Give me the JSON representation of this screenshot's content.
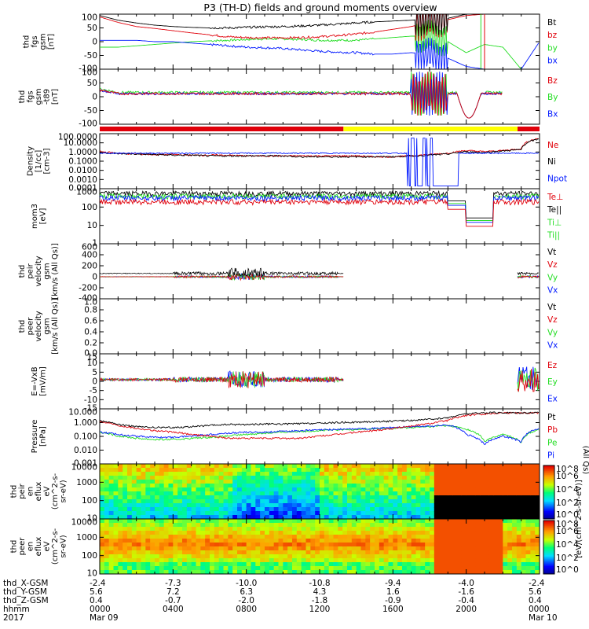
{
  "title": "P3 (TH-D) fields and ground moments overview",
  "colors": {
    "black": "#000000",
    "red": "#e0000a",
    "green": "#22dd22",
    "blue": "#0018ff",
    "yellow": "#ffff00"
  },
  "panels": [
    {
      "id": "fgs",
      "ylabel": [
        "thd",
        "fgs",
        "gsm",
        "[nT]"
      ],
      "yticks": [
        "100",
        "50",
        "0",
        "-50",
        "-100"
      ],
      "legend": [
        {
          "text": "Bt",
          "color": "black"
        },
        {
          "text": "bz",
          "color": "red"
        },
        {
          "text": "by",
          "color": "green"
        },
        {
          "text": "bx",
          "color": "blue"
        }
      ]
    },
    {
      "id": "fgs_t89",
      "ylabel": [
        "thd",
        "fgs",
        "gsm",
        "-t89",
        "[nT]"
      ],
      "yticks": [
        "100",
        "50",
        "0",
        "-50",
        "-100"
      ],
      "legend": [
        {
          "text": "Bz",
          "color": "red"
        },
        {
          "text": "By",
          "color": "green"
        },
        {
          "text": "Bx",
          "color": "blue"
        }
      ]
    },
    {
      "id": "density",
      "ylabel": [
        "Density",
        "[1/cc]",
        "[cm-3]"
      ],
      "yticks": [
        "100.0000",
        "10.0000",
        "1.0000",
        "0.1000",
        "0.0100",
        "0.0010",
        "0.0001"
      ],
      "legend": [
        {
          "text": "Ne",
          "color": "red"
        },
        {
          "text": "Ni",
          "color": "black"
        },
        {
          "text": "Npot",
          "color": "blue"
        }
      ]
    },
    {
      "id": "temp",
      "ylabel": [
        "mom3",
        "[eV]"
      ],
      "yticks": [
        "1000",
        "100",
        "10",
        "1"
      ],
      "legend": [
        {
          "text": "Te⊥",
          "color": "red"
        },
        {
          "text": "Te||",
          "color": "black"
        },
        {
          "text": "Ti⊥",
          "color": "green"
        },
        {
          "text": "Ti||",
          "color": "green"
        }
      ]
    },
    {
      "id": "vi",
      "ylabel": [
        "thd",
        "peir",
        "velocity",
        "gsm",
        "[km/s (All Qs)]"
      ],
      "yticks": [
        "600",
        "400",
        "200",
        "0",
        "-200",
        "-400"
      ],
      "legend": [
        {
          "text": "Vt",
          "color": "black"
        },
        {
          "text": "Vz",
          "color": "red"
        },
        {
          "text": "Vy",
          "color": "green"
        },
        {
          "text": "Vx",
          "color": "blue"
        }
      ]
    },
    {
      "id": "ve",
      "ylabel": [
        "thd",
        "peer",
        "velocity",
        "gsm",
        "[km/s (All Qs)]"
      ],
      "yticks": [
        "1.0",
        "0.8",
        "0.6",
        "0.4",
        "0.2",
        "0.0"
      ],
      "legend": [
        {
          "text": "Vt",
          "color": "black"
        },
        {
          "text": "Vz",
          "color": "red"
        },
        {
          "text": "Vy",
          "color": "green"
        },
        {
          "text": "Vx",
          "color": "blue"
        }
      ]
    },
    {
      "id": "efield",
      "ylabel": [
        "E=-VxB",
        "[mV/m]"
      ],
      "yticks": [
        "15",
        "10",
        "5",
        "0",
        "-5",
        "-10",
        "-15"
      ],
      "legend": [
        {
          "text": "Ez",
          "color": "red"
        },
        {
          "text": "Ey",
          "color": "green"
        },
        {
          "text": "Ex",
          "color": "blue"
        }
      ]
    },
    {
      "id": "pressure",
      "ylabel": [
        "Pressure",
        "[nPa]"
      ],
      "yticks": [
        "10.000",
        "1.000",
        "0.100",
        "0.010",
        "0.001"
      ],
      "legend": [
        {
          "text": "Pt",
          "color": "black"
        },
        {
          "text": "Pb",
          "color": "red"
        },
        {
          "text": "Pe",
          "color": "green"
        },
        {
          "text": "Pi",
          "color": "blue"
        }
      ],
      "side_note": "(All Qs)"
    },
    {
      "id": "peir_spec",
      "ylabel": [
        "thd",
        "peir",
        "en",
        "eflux",
        "eV",
        "(cm^2-s-",
        "sr-eV)"
      ],
      "yticks": [
        "10000",
        "1000",
        "100",
        "10"
      ]
    },
    {
      "id": "peer_spec",
      "ylabel": [
        "thd",
        "peer",
        "en",
        "eflux",
        "eV",
        "(cm^2-s-",
        "sr-eV)"
      ],
      "yticks": [
        "10000",
        "1000",
        "100",
        "10"
      ]
    }
  ],
  "colorbar": {
    "label": "[eV/(cm^2-s-sr-eV)]",
    "upper_ticks": [
      "10^8",
      "10^6",
      "10^4",
      "10^2",
      "10^0"
    ],
    "lower_ticks": [
      "10^8",
      "10^6",
      "10^4",
      "10^2",
      "10^0"
    ]
  },
  "footer": {
    "rows": [
      {
        "label": "thd_X-GSM",
        "values": [
          "-2.4",
          "-7.3",
          "-10.0",
          "-10.8",
          "-9.4",
          "-4.0",
          "-2.4"
        ]
      },
      {
        "label": "thd_Y-GSM",
        "values": [
          "5.6",
          "7.2",
          "6.3",
          "4.3",
          "1.6",
          "-1.6",
          "5.6"
        ]
      },
      {
        "label": "thd_Z-GSM",
        "values": [
          "0.4",
          "-0.7",
          "-2.0",
          "-1.8",
          "-0.9",
          "-0.4",
          "0.4"
        ]
      },
      {
        "label": "hhmm",
        "values": [
          "0000",
          "0400",
          "0800",
          "1200",
          "1600",
          "2000",
          "0000"
        ]
      }
    ],
    "extra_row": {
      "label": "2017",
      "values": [
        "Mar 09",
        "",
        "",
        "",
        "",
        "",
        "Mar 10"
      ]
    }
  },
  "chart_data": {
    "type": "line",
    "title": "P3 (TH-D) fields and ground moments overview",
    "x_axis": {
      "label": "hhmm",
      "start": "2017-03-09 00:00",
      "end": "2017-03-10 00:00",
      "ticks": [
        "0000",
        "0400",
        "0800",
        "1200",
        "1600",
        "2000",
        "0000"
      ]
    },
    "x_hours": [
      0,
      1,
      2,
      3,
      4,
      5,
      6,
      7,
      8,
      9,
      10,
      11,
      12,
      13,
      14,
      15,
      16,
      17,
      18,
      19,
      20,
      21,
      22,
      23,
      24
    ],
    "series": [
      {
        "name": "Bt",
        "panel": "fgs",
        "color": "black",
        "values": [
          95,
          78,
          68,
          60,
          55,
          52,
          50,
          50,
          52,
          54,
          55,
          57,
          60,
          64,
          68,
          72,
          75,
          78,
          82,
          85,
          100,
          100,
          100,
          100,
          100
        ]
      },
      {
        "name": "bz",
        "panel": "fgs",
        "color": "red",
        "values": [
          90,
          70,
          55,
          48,
          40,
          32,
          25,
          18,
          15,
          14,
          14,
          15,
          18,
          22,
          28,
          35,
          45,
          55,
          70,
          80,
          95,
          100,
          100,
          100,
          100
        ]
      },
      {
        "name": "by",
        "panel": "fgs",
        "color": "green",
        "values": [
          -20,
          -20,
          -15,
          -10,
          -5,
          0,
          3,
          5,
          8,
          10,
          10,
          8,
          5,
          5,
          5,
          10,
          15,
          20,
          20,
          0,
          -40,
          -10,
          -20,
          -100,
          -100
        ]
      },
      {
        "name": "bx",
        "panel": "fgs",
        "color": "blue",
        "values": [
          5,
          5,
          5,
          0,
          0,
          -5,
          -10,
          -15,
          -20,
          -22,
          -25,
          -30,
          -35,
          -38,
          -40,
          -45,
          -45,
          -40,
          -45,
          -60,
          -90,
          -100,
          -100,
          -100,
          0
        ]
      },
      {
        "name": "Ne",
        "panel": "density",
        "color": "red",
        "values": [
          1.5,
          1.0,
          0.8,
          0.7,
          0.7,
          0.6,
          0.6,
          0.6,
          0.5,
          0.5,
          0.5,
          0.5,
          0.5,
          0.5,
          0.5,
          0.4,
          0.4,
          0.5,
          0.7,
          1.0,
          2,
          1.5,
          2,
          3,
          50
        ]
      },
      {
        "name": "Ni",
        "panel": "density",
        "color": "black",
        "values": [
          1.2,
          0.9,
          0.8,
          0.7,
          0.6,
          0.6,
          0.5,
          0.5,
          0.5,
          0.5,
          0.5,
          0.4,
          0.4,
          0.4,
          0.4,
          0.4,
          0.4,
          0.5,
          0.6,
          0.8,
          1.5,
          1.2,
          1.8,
          2.5,
          40
        ]
      },
      {
        "name": "Pt",
        "panel": "pressure",
        "color": "black",
        "values": [
          2.5,
          1.2,
          0.8,
          0.7,
          0.7,
          0.8,
          1.0,
          1.2,
          1.2,
          1.3,
          1.3,
          1.4,
          1.5,
          1.7,
          1.8,
          2,
          2.2,
          2.5,
          3,
          4,
          8,
          10,
          10,
          10,
          10
        ]
      },
      {
        "name": "Pb",
        "panel": "pressure",
        "color": "red",
        "values": [
          2.2,
          1.0,
          0.6,
          0.4,
          0.3,
          0.2,
          0.15,
          0.1,
          0.1,
          0.1,
          0.1,
          0.1,
          0.15,
          0.2,
          0.3,
          0.4,
          0.6,
          0.9,
          1.4,
          2.5,
          6,
          8,
          10,
          10,
          10
        ]
      },
      {
        "name": "Pe",
        "panel": "pressure",
        "color": "green",
        "values": [
          0.3,
          0.15,
          0.1,
          0.08,
          0.08,
          0.1,
          0.12,
          0.15,
          0.2,
          0.25,
          0.3,
          0.35,
          0.4,
          0.45,
          0.5,
          0.55,
          0.6,
          0.7,
          0.8,
          1,
          0.5,
          0.05,
          0.2,
          0.05,
          0.5
        ]
      },
      {
        "name": "Pi",
        "panel": "pressure",
        "color": "blue",
        "values": [
          0.3,
          0.2,
          0.15,
          0.12,
          0.12,
          0.15,
          0.2,
          0.25,
          0.3,
          0.3,
          0.35,
          0.4,
          0.45,
          0.5,
          0.55,
          0.6,
          0.7,
          0.8,
          0.9,
          1.1,
          0.2,
          0.03,
          0.15,
          0.05,
          0.6
        ]
      }
    ]
  }
}
